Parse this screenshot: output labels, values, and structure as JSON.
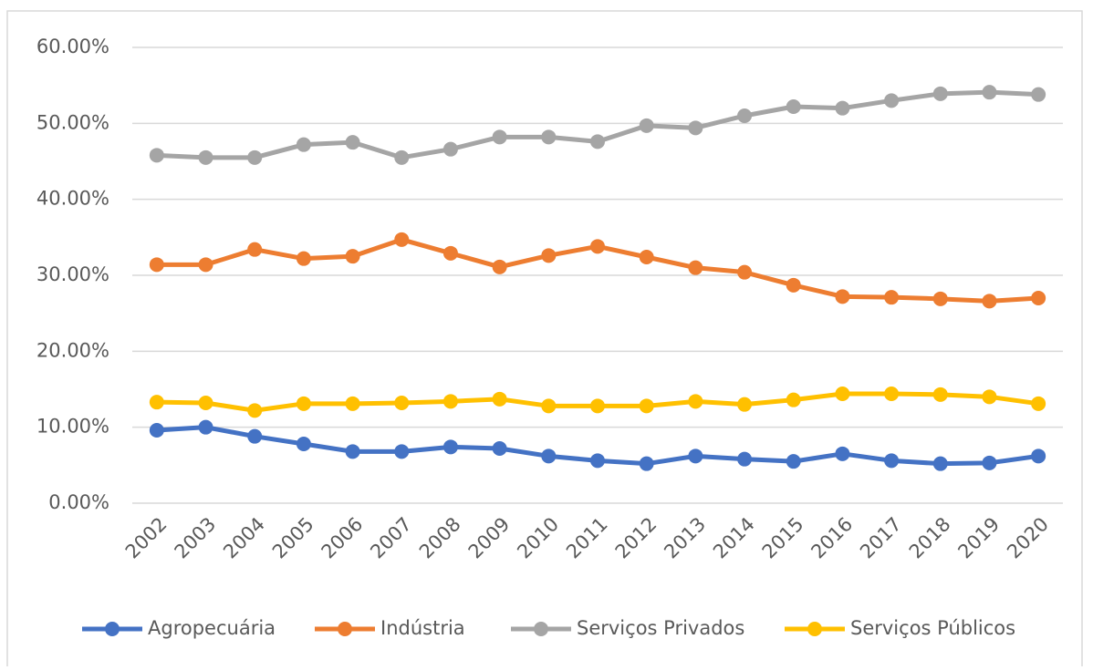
{
  "chart_data": {
    "type": "line",
    "categories": [
      "2002",
      "2003",
      "2004",
      "2005",
      "2006",
      "2007",
      "2008",
      "2009",
      "2010",
      "2011",
      "2012",
      "2013",
      "2014",
      "2015",
      "2016",
      "2017",
      "2018",
      "2019",
      "2020"
    ],
    "series": [
      {
        "name": "Agropecuária",
        "color": "#4472c4",
        "values": [
          9.6,
          10.0,
          8.8,
          7.8,
          6.8,
          6.8,
          7.4,
          7.2,
          6.2,
          5.6,
          5.2,
          6.2,
          5.8,
          5.5,
          6.5,
          5.6,
          5.2,
          5.3,
          6.2
        ]
      },
      {
        "name": "Indústria",
        "color": "#ed7d31",
        "values": [
          31.4,
          31.4,
          33.4,
          32.2,
          32.5,
          34.7,
          32.9,
          31.1,
          32.6,
          33.8,
          32.4,
          31.0,
          30.4,
          28.7,
          27.2,
          27.1,
          26.9,
          26.6,
          27.0
        ]
      },
      {
        "name": "Serviços Privados",
        "color": "#a5a5a5",
        "values": [
          45.8,
          45.5,
          45.5,
          47.2,
          47.5,
          45.5,
          46.6,
          48.2,
          48.2,
          47.6,
          49.7,
          49.4,
          51.0,
          52.2,
          52.0,
          53.0,
          53.9,
          54.1,
          53.8
        ]
      },
      {
        "name": "Serviços Públicos",
        "color": "#ffc000",
        "values": [
          13.3,
          13.2,
          12.2,
          13.1,
          13.1,
          13.2,
          13.4,
          13.7,
          12.8,
          12.8,
          12.8,
          13.4,
          13.0,
          13.6,
          14.4,
          14.4,
          14.3,
          14.0,
          13.1
        ]
      }
    ],
    "ylim": [
      0,
      60
    ],
    "yticks": [
      {
        "value": 0,
        "label": "0.00%"
      },
      {
        "value": 10,
        "label": "10.00%"
      },
      {
        "value": 20,
        "label": "20.00%"
      },
      {
        "value": 30,
        "label": "30.00%"
      },
      {
        "value": 40,
        "label": "40.00%"
      },
      {
        "value": 50,
        "label": "50.00%"
      },
      {
        "value": 60,
        "label": "60.00%"
      }
    ],
    "grid": true,
    "legend": "bottom"
  }
}
